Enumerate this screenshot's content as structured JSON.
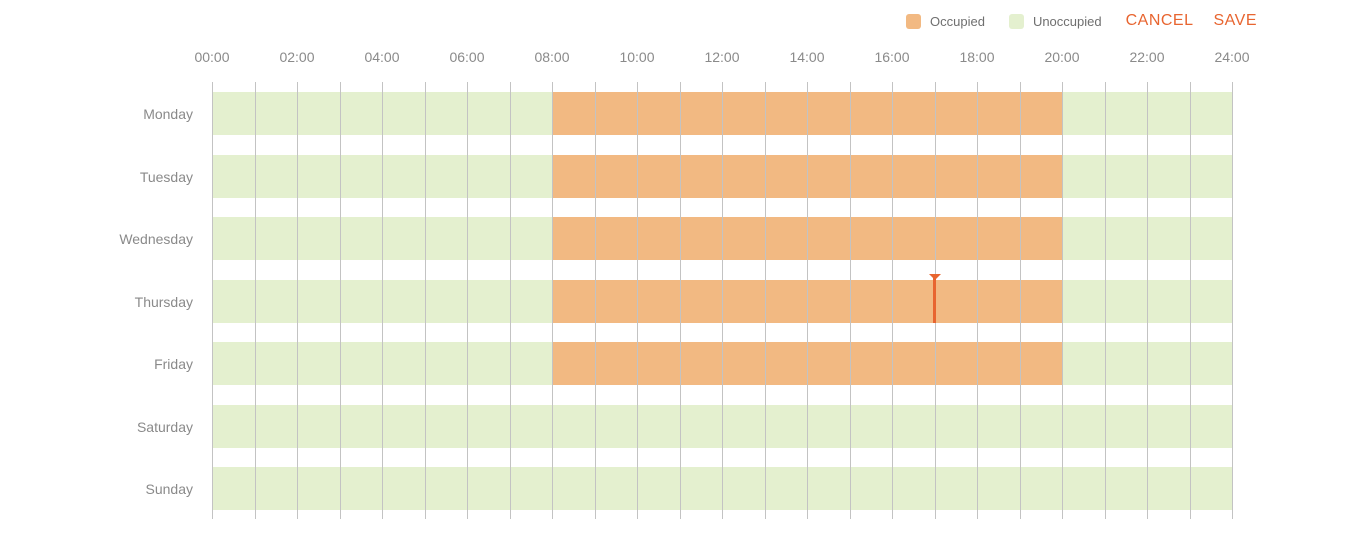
{
  "legend": {
    "occupied_label": "Occupied",
    "unoccupied_label": "Unoccupied",
    "occupied_color": "#f2b982",
    "unoccupied_color": "#e4f0cf"
  },
  "actions": {
    "cancel_label": "CANCEL",
    "save_label": "SAVE"
  },
  "hours": [
    "00:00",
    "02:00",
    "04:00",
    "06:00",
    "08:00",
    "10:00",
    "12:00",
    "14:00",
    "16:00",
    "18:00",
    "20:00",
    "22:00",
    "24:00"
  ],
  "days": [
    {
      "label": "Monday",
      "occupied": [
        {
          "start": 8,
          "end": 20
        }
      ]
    },
    {
      "label": "Tuesday",
      "occupied": [
        {
          "start": 8,
          "end": 20
        }
      ]
    },
    {
      "label": "Wednesday",
      "occupied": [
        {
          "start": 8,
          "end": 20
        }
      ]
    },
    {
      "label": "Thursday",
      "occupied": [
        {
          "start": 8,
          "end": 20
        }
      ]
    },
    {
      "label": "Friday",
      "occupied": [
        {
          "start": 8,
          "end": 20
        }
      ]
    },
    {
      "label": "Saturday",
      "occupied": []
    },
    {
      "label": "Sunday",
      "occupied": []
    }
  ],
  "current_time_marker": {
    "day": "Thursday",
    "hour": 17,
    "color": "#e86530"
  }
}
